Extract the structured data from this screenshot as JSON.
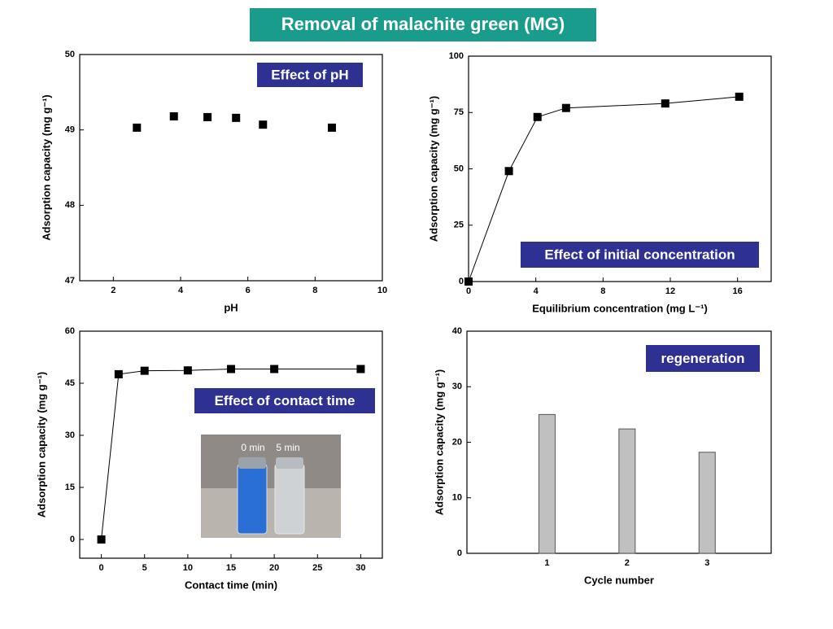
{
  "title": "Removal of malachite green (MG)",
  "chart_data": [
    {
      "type": "scatter",
      "annotation": "Effect of pH",
      "x_label": "pH",
      "y_label": "Adsorption capacity (mg g⁻¹)",
      "x": [
        2.7,
        3.8,
        4.8,
        5.65,
        6.45,
        8.5
      ],
      "values": [
        49.03,
        49.18,
        49.17,
        49.16,
        49.07,
        49.03
      ],
      "color": "#000000",
      "xlim": [
        1,
        10
      ],
      "xticks": [
        2,
        4,
        6,
        8,
        10
      ],
      "ylim": [
        47,
        50
      ],
      "yticks": [
        47,
        48,
        49,
        50
      ]
    },
    {
      "type": "line",
      "annotation": "Effect of initial concentration",
      "x_label": "Equilibrium concentration (mg L⁻¹)",
      "y_label": "Adsorption capacity (mg g⁻¹)",
      "x": [
        0,
        2.4,
        4.1,
        5.8,
        11.7,
        16.1
      ],
      "values": [
        0,
        49,
        73,
        77,
        79,
        82
      ],
      "color": "#000000",
      "xlim": [
        0,
        18
      ],
      "xticks": [
        0,
        4,
        8,
        12,
        16
      ],
      "ylim": [
        0,
        100
      ],
      "yticks": [
        0,
        25,
        50,
        75,
        100
      ]
    },
    {
      "type": "line",
      "annotation": "Effect of contact time",
      "x_label": "Contact time (min)",
      "y_label": "Adsorption capacity (mg g⁻¹)",
      "inset_labels": [
        "0 min",
        "5 min"
      ],
      "x": [
        0,
        2,
        5,
        10,
        15,
        20,
        30
      ],
      "values": [
        0,
        47.6,
        48.6,
        48.7,
        49.1,
        49.1,
        49.1
      ],
      "color": "#000000",
      "xlim": [
        -2.5,
        32.5
      ],
      "xticks": [
        0,
        5,
        10,
        15,
        20,
        25,
        30
      ],
      "ylim": [
        -5.4,
        60
      ],
      "yticks": [
        0,
        15,
        30,
        45,
        60
      ]
    },
    {
      "type": "bar",
      "annotation": "regeneration",
      "x_label": "Cycle number",
      "y_label": "Adsorption capacity (mg g⁻¹)",
      "x": [
        1,
        2,
        3
      ],
      "values": [
        25,
        22.4,
        18.2
      ],
      "color": "#c0c0c0",
      "xlim": [
        0,
        3.8
      ],
      "xticks": [
        1,
        2,
        3
      ],
      "ylim": [
        0,
        40
      ],
      "yticks": [
        0,
        10,
        20,
        30,
        40
      ]
    }
  ]
}
